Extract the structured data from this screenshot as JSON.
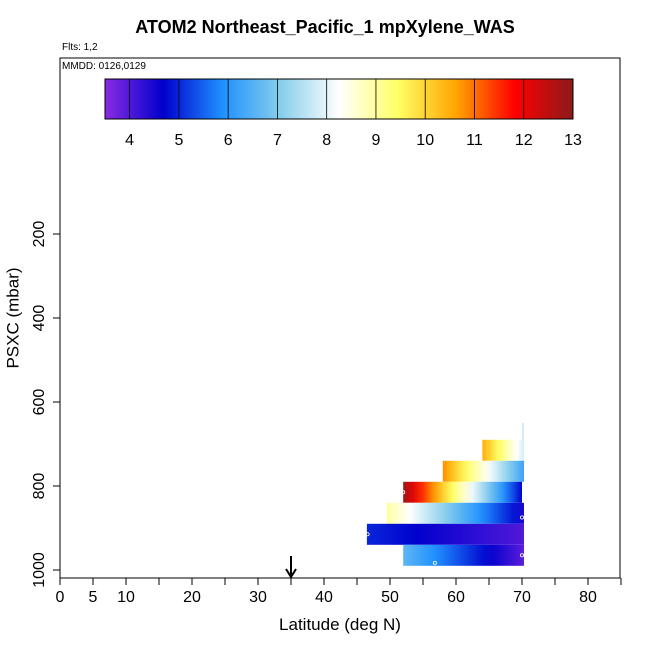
{
  "title": "ATOM2 Northeast_Pacific_1 mpXylene_WAS",
  "flights_label": "Flts: 1,2",
  "mmdd_label": "MMDD: 0126,0129",
  "chart_data": {
    "type": "heatmap",
    "title": "ATOM2 Northeast_Pacific_1 mpXylene_WAS",
    "xlabel": "Latitude (deg N)",
    "ylabel": "PSXC (mbar)",
    "xlim": [
      0,
      85
    ],
    "ylim": [
      1000,
      0
    ],
    "x_ticks": [
      0,
      5,
      10,
      20,
      30,
      40,
      50,
      60,
      70,
      80
    ],
    "x_minor_ticks": [
      15,
      25,
      35,
      45,
      55,
      65,
      75,
      85
    ],
    "y_ticks": [
      200,
      400,
      600,
      800,
      1000
    ],
    "grid": false,
    "colorbar": {
      "min": 3.5,
      "max": 13,
      "ticks": [
        4,
        5,
        6,
        7,
        8,
        9,
        10,
        11,
        12,
        13
      ],
      "colors": [
        "#8a2be2",
        "#0000cd",
        "#1e90ff",
        "#87ceeb",
        "#ffffff",
        "#ffff66",
        "#ffa500",
        "#ff0000",
        "#8b1a1a"
      ]
    },
    "arrow_marker_latitude": 35,
    "bands": [
      {
        "pressure_top": 650,
        "pressure_bottom": 690,
        "lat_start": 70,
        "lat_end": 70.3,
        "start_value": 7.8,
        "end_value": 7.8
      },
      {
        "pressure_top": 690,
        "pressure_bottom": 740,
        "lat_start": 64,
        "lat_end": 70.3,
        "start_value": 10.5,
        "end_value": 7.8
      },
      {
        "pressure_top": 740,
        "pressure_bottom": 790,
        "lat_start": 58,
        "lat_end": 70.3,
        "start_value": 10.8,
        "end_value": 6.2
      },
      {
        "pressure_top": 790,
        "pressure_bottom": 840,
        "lat_start": 52,
        "lat_end": 70,
        "start_value": 12.8,
        "end_value": 4.7
      },
      {
        "pressure_top": 840,
        "pressure_bottom": 890,
        "lat_start": 49.5,
        "lat_end": 70.3,
        "start_value": 9.0,
        "end_value": 4.5
      },
      {
        "pressure_top": 890,
        "pressure_bottom": 940,
        "lat_start": 46.5,
        "lat_end": 70.3,
        "start_value": 5.0,
        "end_value": 4.0
      },
      {
        "pressure_top": 940,
        "pressure_bottom": 990,
        "lat_start": 52,
        "lat_end": 70.3,
        "start_value": 6.6,
        "end_value": 3.9
      }
    ],
    "sample_points": [
      {
        "lat": 52,
        "pressure": 815
      },
      {
        "lat": 70,
        "pressure": 875
      },
      {
        "lat": 46.6,
        "pressure": 915
      },
      {
        "lat": 70,
        "pressure": 965
      },
      {
        "lat": 56.8,
        "pressure": 983
      }
    ]
  }
}
